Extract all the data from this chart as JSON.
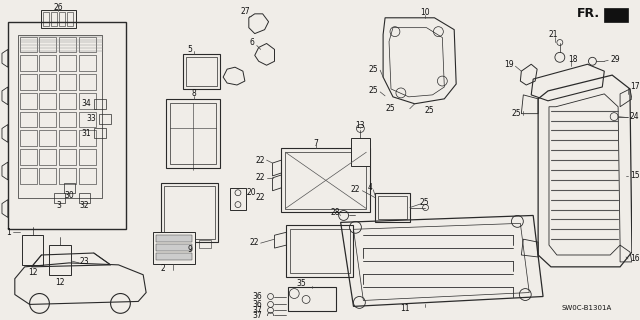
{
  "background_color": "#f0ede8",
  "diagram_code": "SW0C-B1301A",
  "fr_label": "FR.",
  "figsize": [
    6.4,
    3.2
  ],
  "dpi": 100,
  "label_color": "#111111",
  "line_color": "#2a2a2a",
  "label_fontsize": 5.5
}
